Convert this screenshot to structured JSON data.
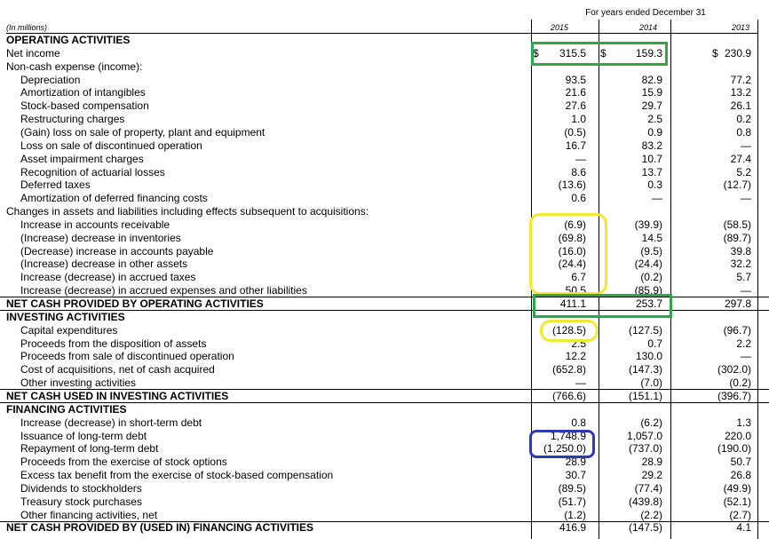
{
  "header": {
    "period": "For years ended December 31",
    "units": "(In millions)",
    "years": [
      "2015",
      "2014",
      "2013"
    ]
  },
  "rows": [
    {
      "label": "OPERATING ACTIVITIES",
      "bold": true,
      "values": [
        "",
        "",
        ""
      ]
    },
    {
      "label": "Net income",
      "values": [
        "315.5",
        "159.3",
        "230.9"
      ],
      "currency": true
    },
    {
      "label": "Non-cash expense (income):",
      "values": [
        "",
        "",
        ""
      ]
    },
    {
      "label": "Depreciation",
      "indent": true,
      "values": [
        "93.5",
        "82.9",
        "77.2"
      ]
    },
    {
      "label": "Amortization of intangibles",
      "indent": true,
      "values": [
        "21.6",
        "15.9",
        "13.2"
      ]
    },
    {
      "label": "Stock-based compensation",
      "indent": true,
      "values": [
        "27.6",
        "29.7",
        "26.1"
      ]
    },
    {
      "label": "Restructuring charges",
      "indent": true,
      "values": [
        "1.0",
        "2.5",
        "0.2"
      ]
    },
    {
      "label": "(Gain) loss on sale of property, plant and equipment",
      "indent": true,
      "values": [
        "(0.5)",
        "0.9",
        "0.8"
      ]
    },
    {
      "label": "Loss on sale of discontinued operation",
      "indent": true,
      "values": [
        "16.7",
        "83.2",
        "—"
      ]
    },
    {
      "label": "Asset impairment charges",
      "indent": true,
      "values": [
        "—",
        "10.7",
        "27.4"
      ]
    },
    {
      "label": "Recognition of actuarial losses",
      "indent": true,
      "values": [
        "8.6",
        "13.7",
        "5.2"
      ]
    },
    {
      "label": "Deferred taxes",
      "indent": true,
      "values": [
        "(13.6)",
        "0.3",
        "(12.7)"
      ]
    },
    {
      "label": "Amortization of deferred financing costs",
      "indent": true,
      "values": [
        "0.6",
        "—",
        "—"
      ]
    },
    {
      "label": "Changes in assets and liabilities including effects subsequent to acquisitions:",
      "values": [
        "",
        "",
        ""
      ]
    },
    {
      "label": "Increase in accounts receivable",
      "indent": true,
      "values": [
        "(6.9)",
        "(39.9)",
        "(58.5)"
      ]
    },
    {
      "label": "(Increase) decrease in inventories",
      "indent": true,
      "values": [
        "(69.8)",
        "14.5",
        "(89.7)"
      ]
    },
    {
      "label": "(Decrease) increase in accounts payable",
      "indent": true,
      "values": [
        "(16.0)",
        "(9.5)",
        "39.8"
      ]
    },
    {
      "label": "(Increase) decrease in other assets",
      "indent": true,
      "values": [
        "(24.4)",
        "(24.4)",
        "32.2"
      ]
    },
    {
      "label": "Increase (decrease) in accrued taxes",
      "indent": true,
      "values": [
        "6.7",
        "(0.2)",
        "5.7"
      ]
    },
    {
      "label": "Increase (decrease) in accrued expenses and other liabilities",
      "indent": true,
      "values": [
        "50.5",
        "(85.9)",
        "—"
      ],
      "underline": true
    },
    {
      "label": "NET CASH PROVIDED BY OPERATING ACTIVITIES",
      "bold": true,
      "values": [
        "411.1",
        "253.7",
        "297.8"
      ],
      "underline": true
    },
    {
      "label": "INVESTING ACTIVITIES",
      "bold": true,
      "values": [
        "",
        "",
        ""
      ]
    },
    {
      "label": "Capital expenditures",
      "indent": true,
      "values": [
        "(128.5)",
        "(127.5)",
        "(96.7)"
      ]
    },
    {
      "label": "Proceeds from the disposition of assets",
      "indent": true,
      "values": [
        "2.5",
        "0.7",
        "2.2"
      ]
    },
    {
      "label": "Proceeds from sale of discontinued operation",
      "indent": true,
      "values": [
        "12.2",
        "130.0",
        "—"
      ]
    },
    {
      "label": "Cost of acquisitions, net of cash acquired",
      "indent": true,
      "values": [
        "(652.8)",
        "(147.3)",
        "(302.0)"
      ]
    },
    {
      "label": "Other investing activities",
      "indent": true,
      "values": [
        "—",
        "(7.0)",
        "(0.2)"
      ],
      "underline": true
    },
    {
      "label": "NET CASH USED IN INVESTING ACTIVITIES",
      "bold": true,
      "values": [
        "(766.6)",
        "(151.1)",
        "(396.7)"
      ],
      "underline": true
    },
    {
      "label": "FINANCING ACTIVITIES",
      "bold": true,
      "values": [
        "",
        "",
        ""
      ]
    },
    {
      "label": "Increase (decrease) in short-term debt",
      "indent": true,
      "values": [
        "0.8",
        "(6.2)",
        "1.3"
      ]
    },
    {
      "label": "Issuance of long-term debt",
      "indent": true,
      "values": [
        "1,748.9",
        "1,057.0",
        "220.0"
      ]
    },
    {
      "label": "Repayment of long-term debt",
      "indent": true,
      "values": [
        "(1,250.0)",
        "(737.0)",
        "(190.0)"
      ]
    },
    {
      "label": "Proceeds from the exercise of stock options",
      "indent": true,
      "values": [
        "28.9",
        "28.9",
        "50.7"
      ]
    },
    {
      "label": "Excess tax benefit from the exercise of stock-based compensation",
      "indent": true,
      "values": [
        "30.7",
        "29.2",
        "26.8"
      ]
    },
    {
      "label": "Dividends to stockholders",
      "indent": true,
      "values": [
        "(89.5)",
        "(77.4)",
        "(49.9)"
      ]
    },
    {
      "label": "Treasury stock purchases",
      "indent": true,
      "values": [
        "(51.7)",
        "(439.8)",
        "(52.1)"
      ]
    },
    {
      "label": "Other financing activities, net",
      "indent": true,
      "values": [
        "(1.2)",
        "(2.2)",
        "(2.7)"
      ],
      "underline": true
    },
    {
      "label": "NET CASH PROVIDED BY (USED IN) FINANCING ACTIVITIES",
      "bold": true,
      "values": [
        "416.9",
        "(147.5)",
        "4.1"
      ]
    }
  ],
  "currency_symbol": "$",
  "colors": {
    "green_highlight": "#2aa84a",
    "yellow_highlight": "#f2e830",
    "blue_highlight": "#2d39b5"
  }
}
